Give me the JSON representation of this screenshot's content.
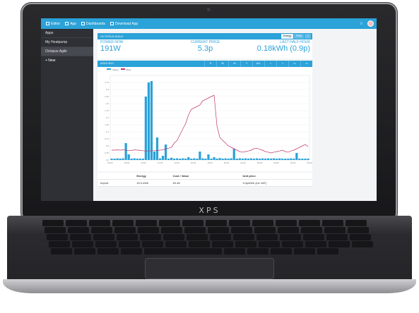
{
  "device": {
    "brand": "XPS"
  },
  "topbar": {
    "items": [
      {
        "icon": "menu-icon",
        "label": "Editor"
      },
      {
        "icon": "app-icon",
        "label": "App"
      },
      {
        "icon": "calendar-icon",
        "label": "Dashboards"
      },
      {
        "icon": "download-icon",
        "label": "Download App"
      }
    ],
    "right_icon": "star-icon"
  },
  "sidebar": {
    "items": [
      {
        "label": "Apps",
        "active": false
      },
      {
        "label": "My Heatpump",
        "active": false
      },
      {
        "label": "Octopus Agile",
        "active": true
      }
    ],
    "new_label": "+ New"
  },
  "panel": {
    "title": "OCTOPUS AGILE",
    "buttons": [
      {
        "label": "Energy",
        "active": true
      },
      {
        "label": "Price",
        "active": false
      },
      {
        "label": "⤢",
        "active": false
      }
    ]
  },
  "stats": {
    "power_now": {
      "label": "POWER NOW",
      "value": "191W"
    },
    "current_price": {
      "label": "CURRENT PRICE",
      "value": "5.3p"
    },
    "last_half_hour": {
      "label": "LAST HALF HOUR",
      "value": "0.18kWh (0.9p)"
    }
  },
  "chart_panel": {
    "title": "AGILE-BCD",
    "buttons": [
      "D",
      "W",
      "M",
      "Y",
      "ALL",
      "<",
      ">",
      "<<",
      ">>"
    ],
    "legend": [
      {
        "name": "Import",
        "color": "#2ba2d8"
      },
      {
        "name": "Price",
        "color": "#c0356a"
      }
    ]
  },
  "table": {
    "headers": [
      "",
      "Energy",
      "Cost / Value",
      "Unit price"
    ],
    "rows": [
      [
        "Import",
        "16.0 kWh",
        "£0.48",
        "3.0p/kWh (inc VAT)"
      ]
    ]
  },
  "chart_data": {
    "type": "bar",
    "title": "",
    "xlabel": "",
    "ylabel": "",
    "ylim": [
      0,
      3
    ],
    "x_tick_labels": [
      "06:00",
      "08:00",
      "10:00",
      "12:00",
      "14:00",
      "16:00",
      "18:00",
      "20:00",
      "22:00",
      "00:00",
      "02:00",
      "04:00",
      "06:00"
    ],
    "y_tick_labels": [
      "0.0",
      "0.25",
      "0.5",
      "0.75",
      "1.0",
      "1.25",
      "1.5",
      "1.75",
      "2.0",
      "2.25",
      "2.5",
      "2.75"
    ],
    "series": [
      {
        "name": "Import",
        "type": "bar",
        "values": [
          0.05,
          0.05,
          0.06,
          0.05,
          0.06,
          0.6,
          0.2,
          0.05,
          0.06,
          0.05,
          0.05,
          0.05,
          2.25,
          2.75,
          2.8,
          0.3,
          0.8,
          0.06,
          0.15,
          0.55,
          0.05,
          0.08,
          0.05,
          0.06,
          0.05,
          0.06,
          0.05,
          0.1,
          0.05,
          0.06,
          0.05,
          0.3,
          0.06,
          0.05,
          0.2,
          0.05,
          0.1,
          0.05,
          0.07,
          0.05,
          0.06,
          0.05,
          0.06,
          0.4,
          0.05,
          0.06,
          0.05,
          0.06,
          0.05,
          0.06,
          0.05,
          0.06,
          0.05,
          0.06,
          0.05,
          0.06,
          0.05,
          0.06,
          0.05,
          0.06,
          0.05,
          0.05,
          0.05,
          0.06,
          0.05,
          0.25,
          0.05,
          0.05,
          0.05,
          0.05
        ]
      },
      {
        "name": "Price",
        "type": "line",
        "values": [
          0.35,
          0.35,
          0.36,
          0.35,
          0.36,
          0.35,
          0.33,
          0.34,
          0.36,
          0.35,
          0.34,
          0.33,
          0.32,
          0.32,
          0.33,
          0.33,
          0.34,
          0.35,
          0.36,
          0.4,
          0.42,
          0.45,
          0.6,
          0.7,
          0.9,
          1.1,
          1.3,
          1.6,
          1.8,
          1.85,
          1.9,
          1.95,
          2.1,
          2.15,
          2.2,
          2.25,
          2.3,
          1.2,
          0.8,
          0.7,
          0.6,
          0.5,
          0.45,
          0.4,
          0.35,
          0.3,
          0.28,
          0.3,
          0.32,
          0.35,
          0.4,
          0.42,
          0.38,
          0.35,
          0.3,
          0.28,
          0.25,
          0.28,
          0.3,
          0.32,
          0.35,
          0.3,
          0.28,
          0.32,
          0.35,
          0.4,
          0.45,
          0.5,
          0.55,
          0.48
        ]
      }
    ]
  }
}
